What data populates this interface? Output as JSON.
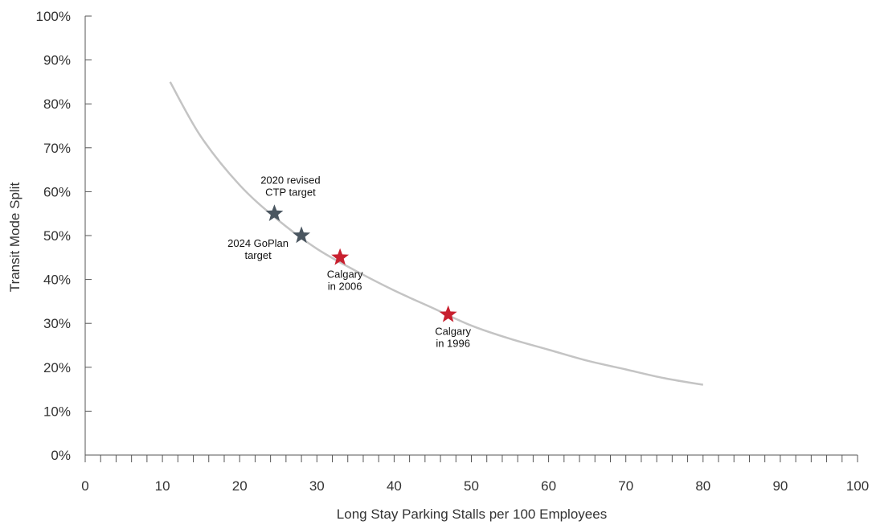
{
  "chart_data": {
    "type": "scatter",
    "xlabel": "Long Stay Parking Stalls per 100 Employees",
    "ylabel": "Transit Mode Split",
    "xlim": [
      0,
      100
    ],
    "ylim": [
      0,
      100
    ],
    "x_ticks": [
      "0",
      "10",
      "20",
      "30",
      "40",
      "50",
      "60",
      "70",
      "80",
      "90",
      "100"
    ],
    "y_ticks": [
      "0%",
      "10%",
      "20%",
      "30%",
      "40%",
      "50%",
      "60%",
      "70%",
      "80%",
      "90%",
      "100%"
    ],
    "grid": false,
    "curve": {
      "color": "#c4c4c4",
      "x": [
        11,
        15,
        20,
        25,
        30,
        35,
        40,
        45,
        50,
        55,
        60,
        65,
        70,
        75,
        80
      ],
      "y": [
        85,
        72.5,
        61.5,
        53.5,
        47,
        42,
        37.5,
        33.5,
        29.5,
        26.5,
        24,
        21.5,
        19.5,
        17.5,
        16
      ]
    },
    "points": [
      {
        "lines": [
          "2020 revised",
          "CTP target"
        ],
        "x": 24.5,
        "y": 55,
        "color": "#4a5660",
        "label_side": "above"
      },
      {
        "lines": [
          "2024 GoPlan",
          "target"
        ],
        "x": 28,
        "y": 50,
        "color": "#4a5660",
        "label_side": "left"
      },
      {
        "lines": [
          "Calgary",
          "in 2006"
        ],
        "x": 33,
        "y": 45,
        "color": "#c8202f",
        "label_side": "below"
      },
      {
        "lines": [
          "Calgary",
          "in 1996"
        ],
        "x": 47,
        "y": 32,
        "color": "#c8202f",
        "label_side": "below"
      }
    ]
  }
}
